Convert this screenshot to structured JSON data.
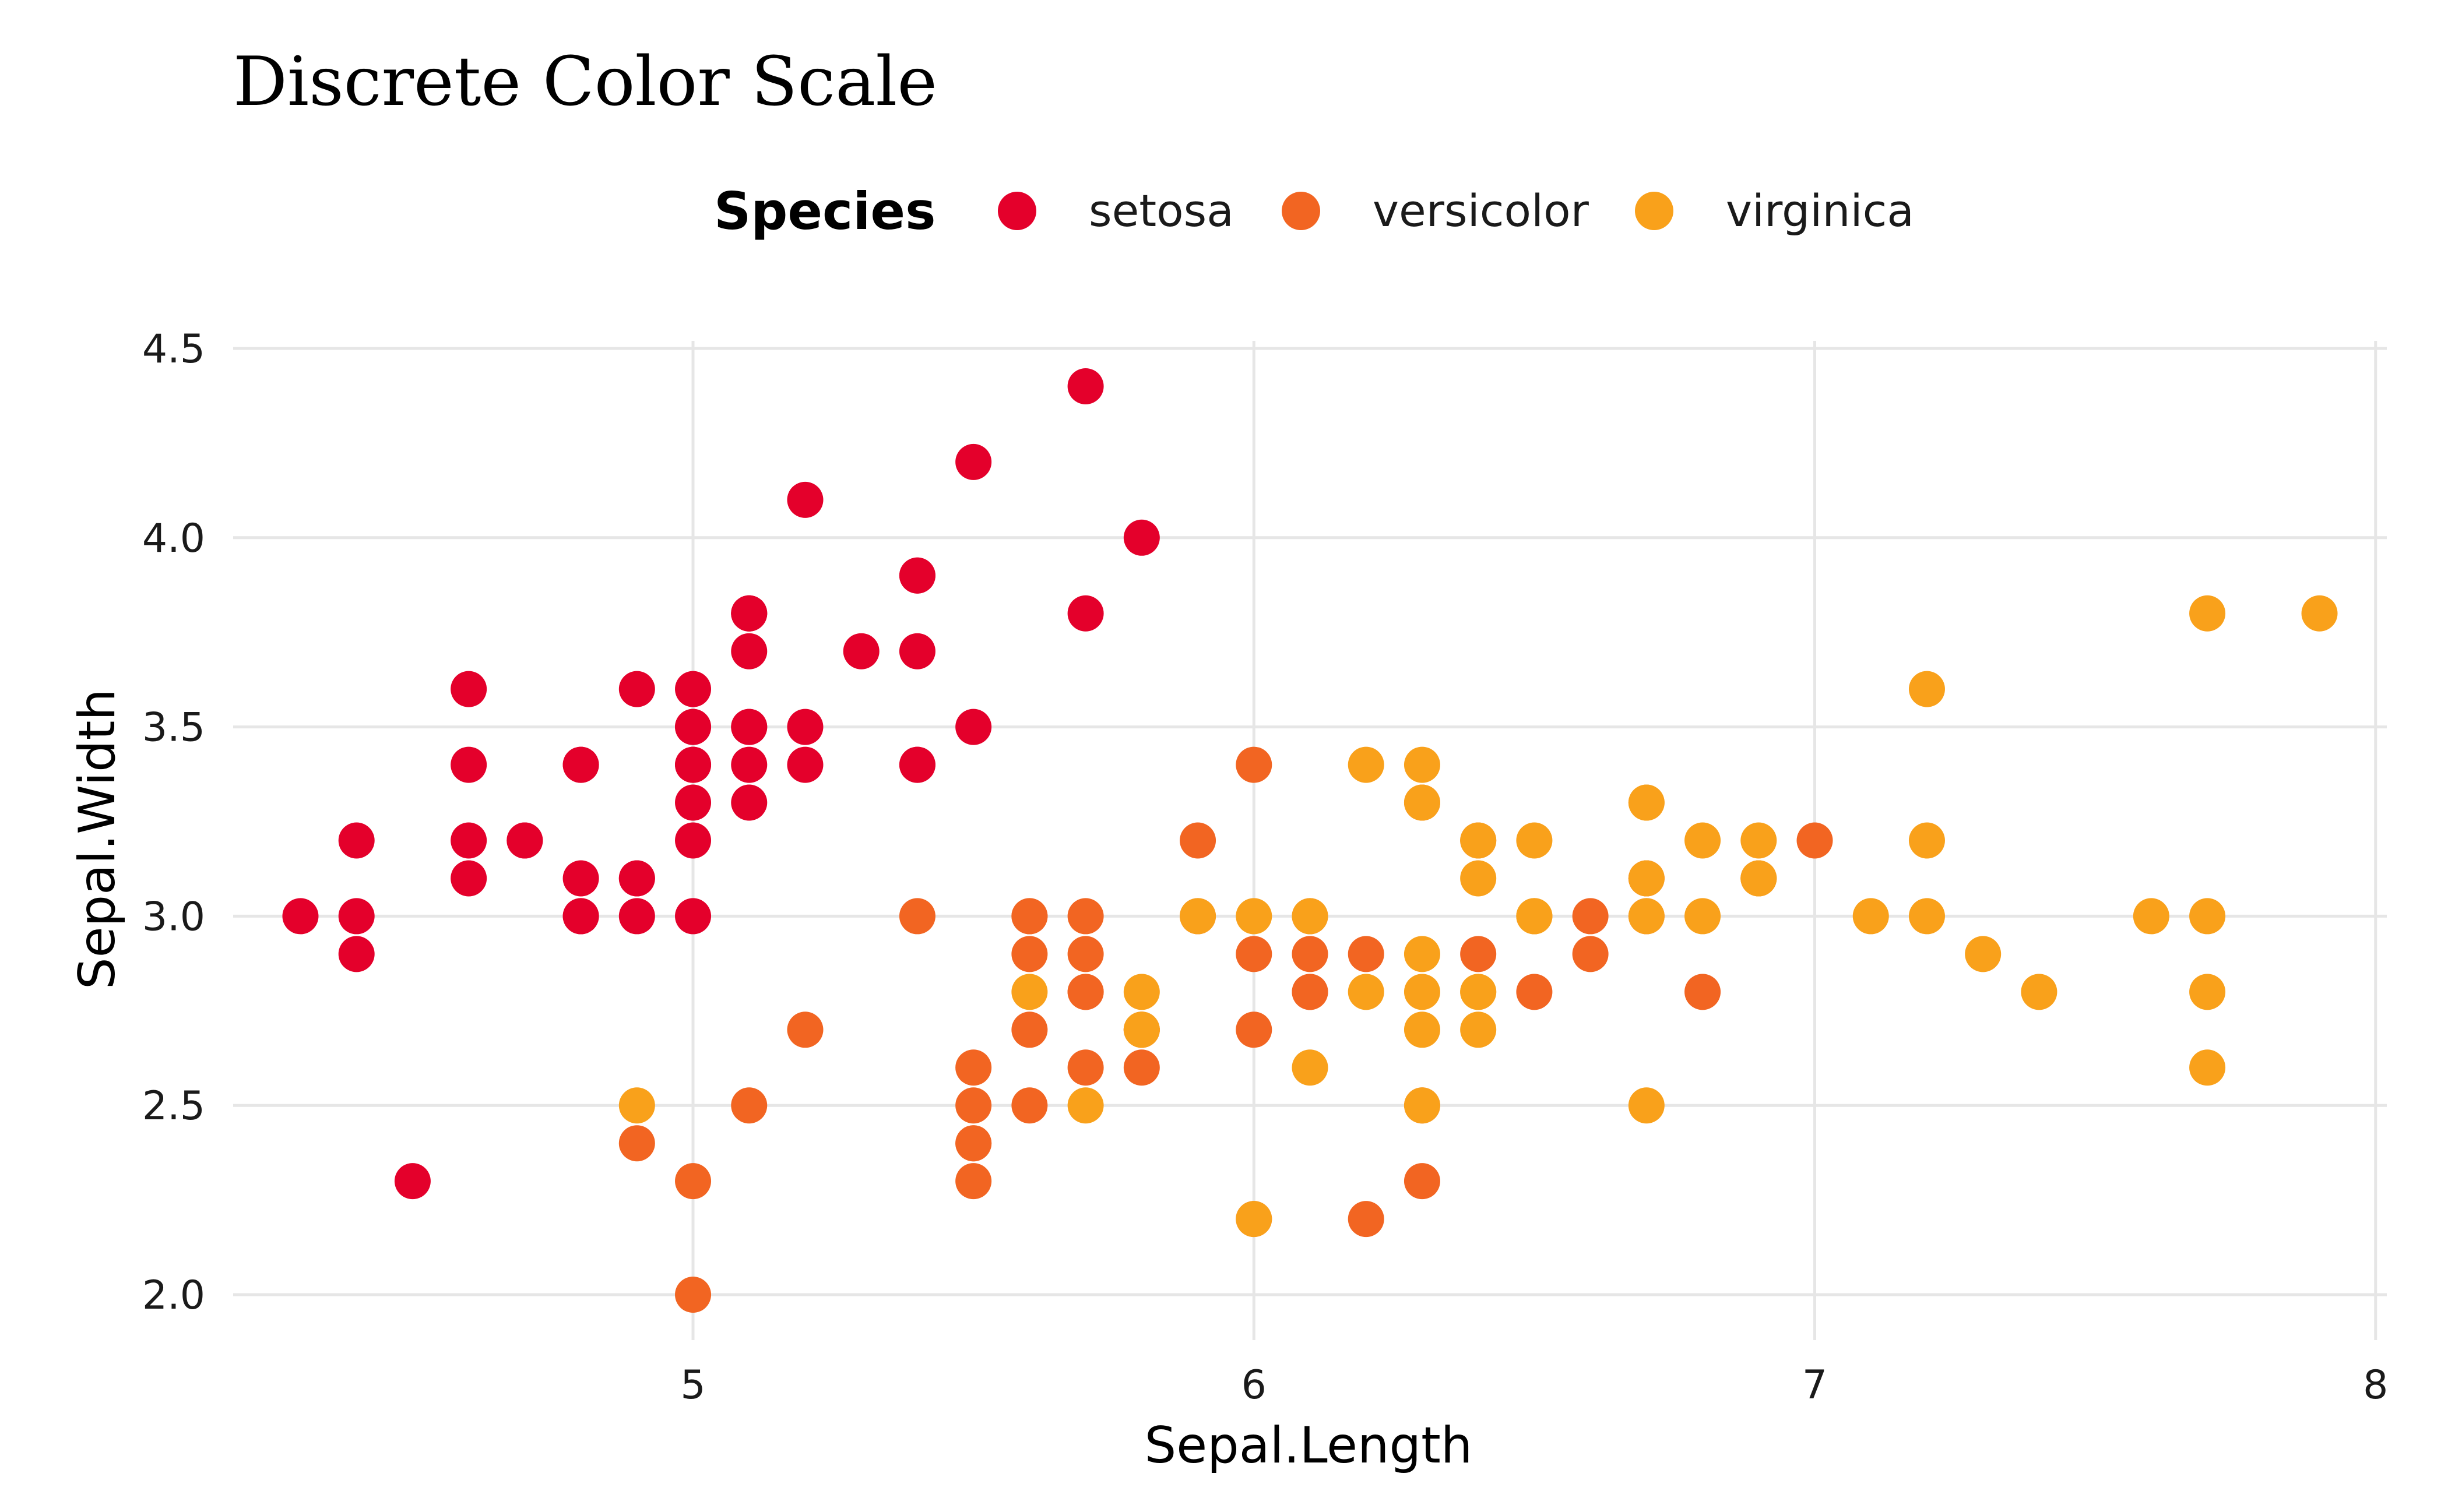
{
  "chart_data": {
    "type": "scatter",
    "title": "Discrete Color Scale",
    "xlabel": "Sepal.Length",
    "ylabel": "Sepal.Width",
    "xlim": [
      4.18,
      8.02
    ],
    "ylim": [
      1.88,
      4.52
    ],
    "xticks": [
      5,
      6,
      7,
      8
    ],
    "yticks": [
      2.0,
      2.5,
      3.0,
      3.5,
      4.0,
      4.5
    ],
    "xtick_labels": [
      "5",
      "6",
      "7",
      "8"
    ],
    "ytick_labels": [
      "2.0",
      "2.5",
      "3.0",
      "3.5",
      "4.0",
      "4.5"
    ],
    "grid": true,
    "legend": {
      "title": "Species",
      "position": "top"
    },
    "series": [
      {
        "name": "setosa",
        "color": "#E4002B",
        "points": [
          [
            5.1,
            3.5
          ],
          [
            4.9,
            3.0
          ],
          [
            4.7,
            3.2
          ],
          [
            4.6,
            3.1
          ],
          [
            5.0,
            3.6
          ],
          [
            5.4,
            3.9
          ],
          [
            4.6,
            3.4
          ],
          [
            5.0,
            3.4
          ],
          [
            4.4,
            2.9
          ],
          [
            4.9,
            3.1
          ],
          [
            5.4,
            3.7
          ],
          [
            4.8,
            3.4
          ],
          [
            4.8,
            3.0
          ],
          [
            4.3,
            3.0
          ],
          [
            5.8,
            4.0
          ],
          [
            5.7,
            4.4
          ],
          [
            5.4,
            3.9
          ],
          [
            5.1,
            3.5
          ],
          [
            5.7,
            3.8
          ],
          [
            5.1,
            3.8
          ],
          [
            5.4,
            3.4
          ],
          [
            5.1,
            3.7
          ],
          [
            4.6,
            3.6
          ],
          [
            5.1,
            3.3
          ],
          [
            4.8,
            3.4
          ],
          [
            5.0,
            3.0
          ],
          [
            5.0,
            3.4
          ],
          [
            5.2,
            3.5
          ],
          [
            5.2,
            3.4
          ],
          [
            4.7,
            3.2
          ],
          [
            4.8,
            3.1
          ],
          [
            5.4,
            3.4
          ],
          [
            5.2,
            4.1
          ],
          [
            5.5,
            4.2
          ],
          [
            4.9,
            3.1
          ],
          [
            5.0,
            3.2
          ],
          [
            5.5,
            3.5
          ],
          [
            4.9,
            3.6
          ],
          [
            4.4,
            3.0
          ],
          [
            5.1,
            3.4
          ],
          [
            5.0,
            3.5
          ],
          [
            4.5,
            2.3
          ],
          [
            4.4,
            3.2
          ],
          [
            5.0,
            3.5
          ],
          [
            5.1,
            3.8
          ],
          [
            4.8,
            3.0
          ],
          [
            5.1,
            3.8
          ],
          [
            4.6,
            3.2
          ],
          [
            5.3,
            3.7
          ],
          [
            5.0,
            3.3
          ]
        ]
      },
      {
        "name": "versicolor",
        "color": "#F26522",
        "points": [
          [
            7.0,
            3.2
          ],
          [
            6.4,
            3.2
          ],
          [
            6.9,
            3.1
          ],
          [
            5.5,
            2.3
          ],
          [
            6.5,
            2.8
          ],
          [
            5.7,
            2.8
          ],
          [
            6.3,
            3.3
          ],
          [
            4.9,
            2.4
          ],
          [
            6.6,
            2.9
          ],
          [
            5.2,
            2.7
          ],
          [
            5.0,
            2.0
          ],
          [
            5.9,
            3.0
          ],
          [
            6.0,
            2.2
          ],
          [
            6.1,
            2.9
          ],
          [
            5.6,
            2.9
          ],
          [
            6.7,
            3.1
          ],
          [
            5.6,
            3.0
          ],
          [
            5.8,
            2.7
          ],
          [
            6.2,
            2.2
          ],
          [
            5.6,
            2.5
          ],
          [
            5.9,
            3.2
          ],
          [
            6.1,
            2.8
          ],
          [
            6.3,
            2.5
          ],
          [
            6.1,
            2.8
          ],
          [
            6.4,
            2.9
          ],
          [
            6.6,
            3.0
          ],
          [
            6.8,
            2.8
          ],
          [
            6.7,
            3.0
          ],
          [
            6.0,
            2.9
          ],
          [
            5.7,
            2.6
          ],
          [
            5.5,
            2.4
          ],
          [
            5.5,
            2.4
          ],
          [
            5.8,
            2.7
          ],
          [
            6.0,
            2.7
          ],
          [
            5.4,
            3.0
          ],
          [
            6.0,
            3.4
          ],
          [
            6.7,
            3.1
          ],
          [
            6.3,
            2.3
          ],
          [
            5.6,
            3.0
          ],
          [
            5.5,
            2.5
          ],
          [
            5.5,
            2.6
          ],
          [
            6.1,
            3.0
          ],
          [
            5.8,
            2.6
          ],
          [
            5.0,
            2.3
          ],
          [
            5.6,
            2.7
          ],
          [
            5.7,
            3.0
          ],
          [
            5.7,
            2.9
          ],
          [
            6.2,
            2.9
          ],
          [
            5.1,
            2.5
          ],
          [
            5.7,
            2.8
          ]
        ]
      },
      {
        "name": "virginica",
        "color": "#F9A11B",
        "points": [
          [
            6.3,
            3.3
          ],
          [
            5.8,
            2.7
          ],
          [
            7.1,
            3.0
          ],
          [
            6.3,
            2.9
          ],
          [
            6.5,
            3.0
          ],
          [
            7.6,
            3.0
          ],
          [
            4.9,
            2.5
          ],
          [
            7.3,
            2.9
          ],
          [
            6.7,
            2.5
          ],
          [
            7.2,
            3.6
          ],
          [
            6.5,
            3.2
          ],
          [
            6.4,
            2.7
          ],
          [
            6.8,
            3.0
          ],
          [
            5.7,
            2.5
          ],
          [
            5.8,
            2.8
          ],
          [
            6.4,
            3.2
          ],
          [
            6.5,
            3.0
          ],
          [
            7.7,
            3.8
          ],
          [
            7.7,
            2.6
          ],
          [
            6.0,
            2.2
          ],
          [
            6.9,
            3.2
          ],
          [
            5.6,
            2.8
          ],
          [
            7.7,
            2.8
          ],
          [
            6.3,
            2.7
          ],
          [
            6.7,
            3.3
          ],
          [
            7.2,
            3.2
          ],
          [
            6.2,
            2.8
          ],
          [
            6.1,
            3.0
          ],
          [
            6.4,
            2.8
          ],
          [
            7.2,
            3.0
          ],
          [
            7.4,
            2.8
          ],
          [
            7.9,
            3.8
          ],
          [
            6.4,
            2.8
          ],
          [
            6.3,
            2.8
          ],
          [
            6.1,
            2.6
          ],
          [
            7.7,
            3.0
          ],
          [
            6.3,
            3.4
          ],
          [
            6.4,
            3.1
          ],
          [
            6.0,
            3.0
          ],
          [
            6.9,
            3.1
          ],
          [
            6.7,
            3.1
          ],
          [
            6.9,
            3.1
          ],
          [
            5.8,
            2.7
          ],
          [
            6.8,
            3.2
          ],
          [
            6.7,
            3.3
          ],
          [
            6.7,
            3.0
          ],
          [
            6.3,
            2.5
          ],
          [
            6.5,
            3.0
          ],
          [
            6.2,
            3.4
          ],
          [
            5.9,
            3.0
          ]
        ]
      }
    ]
  }
}
